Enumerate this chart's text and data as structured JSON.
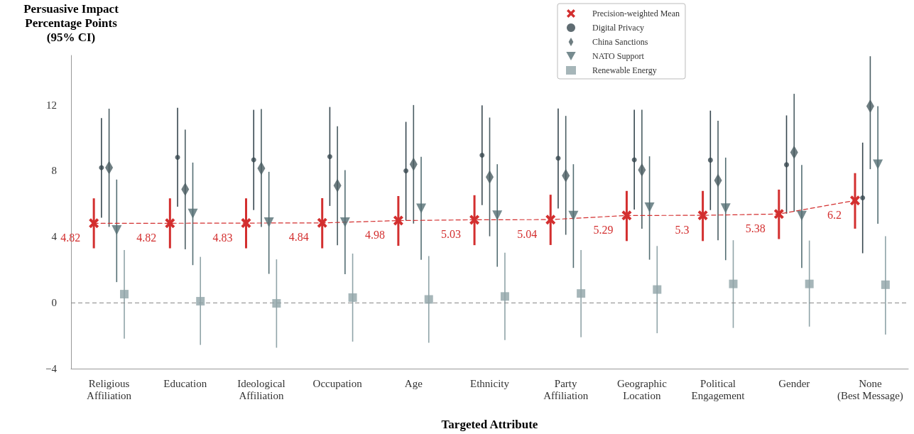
{
  "chart_data": {
    "type": "scatter",
    "xlabel": "Targeted Attribute",
    "ylabel": "Persuasive Impact\nPercentage Points\n(95% CI)",
    "categories": [
      "Religious\nAffiliation",
      "Education",
      "Ideological\nAffiliation",
      "Occupation",
      "Age",
      "Ethnicity",
      "Party\nAffiliation",
      "Geographic\nLocation",
      "Political\nEngagement",
      "Gender",
      "None\n(Best Message)"
    ],
    "ylim": [
      -4,
      15
    ],
    "yticks": [
      -4,
      0,
      4,
      8,
      12
    ],
    "grid": false,
    "legend": "top right",
    "ref_lines": [
      {
        "axis": "y",
        "value": 0,
        "color": "#888888",
        "line_style": "dashed"
      }
    ],
    "series": [
      {
        "name": "Precision-weighted Mean",
        "type": "line",
        "color": "#d32f2f",
        "marker": "cross",
        "line_style": "dashed",
        "values": [
          4.82,
          4.82,
          4.83,
          4.84,
          4.98,
          5.03,
          5.04,
          5.29,
          5.3,
          5.38,
          6.2
        ],
        "value_labels": [
          "4.82",
          "4.82",
          "4.83",
          "4.84",
          "4.98",
          "5.03",
          "5.04",
          "5.29",
          "5.3",
          "5.38",
          "6.2"
        ],
        "errors": [
          [
            3.3,
            6.33
          ],
          [
            3.3,
            6.33
          ],
          [
            3.3,
            6.33
          ],
          [
            3.3,
            6.34
          ],
          [
            3.45,
            6.47
          ],
          [
            3.49,
            6.52
          ],
          [
            3.5,
            6.55
          ],
          [
            3.74,
            6.78
          ],
          [
            3.74,
            6.78
          ],
          [
            3.86,
            6.86
          ],
          [
            4.49,
            7.86
          ]
        ]
      },
      {
        "name": "Digital Privacy",
        "color": "#37474f",
        "marker": "circle",
        "values": [
          8.19,
          8.82,
          8.67,
          8.86,
          8.0,
          8.95,
          8.76,
          8.67,
          8.65,
          8.37,
          6.36
        ],
        "errors": [
          [
            5.15,
            11.2
          ],
          [
            5.82,
            11.82
          ],
          [
            5.62,
            11.7
          ],
          [
            5.87,
            11.87
          ],
          [
            4.99,
            10.97
          ],
          [
            5.92,
            11.97
          ],
          [
            5.72,
            11.78
          ],
          [
            5.65,
            11.7
          ],
          [
            5.62,
            11.65
          ],
          [
            5.4,
            11.36
          ],
          [
            3.0,
            9.71
          ]
        ]
      },
      {
        "name": "China Sanctions",
        "color": "#4a5d62",
        "marker": "diamond",
        "values": [
          8.19,
          6.88,
          8.15,
          7.11,
          8.4,
          7.62,
          7.71,
          8.05,
          7.42,
          9.12,
          11.92
        ],
        "errors": [
          [
            4.6,
            11.77
          ],
          [
            3.24,
            10.5
          ],
          [
            4.6,
            11.75
          ],
          [
            3.49,
            10.7
          ],
          [
            4.8,
            11.99
          ],
          [
            4.03,
            11.23
          ],
          [
            4.12,
            11.33
          ],
          [
            4.49,
            11.7
          ],
          [
            3.79,
            11.04
          ],
          [
            5.52,
            12.67
          ],
          [
            8.1,
            14.95
          ]
        ]
      },
      {
        "name": "NATO Support",
        "color": "#546e73",
        "marker": "triangle",
        "values": [
          4.4,
          5.4,
          4.87,
          4.87,
          5.72,
          5.29,
          5.27,
          5.78,
          5.73,
          5.27,
          8.39
        ],
        "errors": [
          [
            1.25,
            7.47
          ],
          [
            2.28,
            8.5
          ],
          [
            1.75,
            7.94
          ],
          [
            1.73,
            8.04
          ],
          [
            2.6,
            8.85
          ],
          [
            2.18,
            8.4
          ],
          [
            2.11,
            8.4
          ],
          [
            2.61,
            8.88
          ],
          [
            2.58,
            8.8
          ],
          [
            2.11,
            8.35
          ],
          [
            4.79,
            11.92
          ]
        ]
      },
      {
        "name": "Renewable Energy",
        "color": "#90a4a8",
        "marker": "square",
        "values": [
          0.52,
          0.09,
          -0.04,
          0.31,
          0.2,
          0.38,
          0.56,
          0.8,
          1.14,
          1.14,
          1.09
        ],
        "errors": [
          [
            -2.18,
            3.2
          ],
          [
            -2.56,
            2.78
          ],
          [
            -2.73,
            2.63
          ],
          [
            -2.36,
            2.98
          ],
          [
            -2.43,
            2.83
          ],
          [
            -2.27,
            3.03
          ],
          [
            -2.09,
            3.19
          ],
          [
            -1.85,
            3.44
          ],
          [
            -1.53,
            3.79
          ],
          [
            -1.45,
            3.77
          ],
          [
            -1.93,
            4.04
          ]
        ]
      }
    ]
  }
}
